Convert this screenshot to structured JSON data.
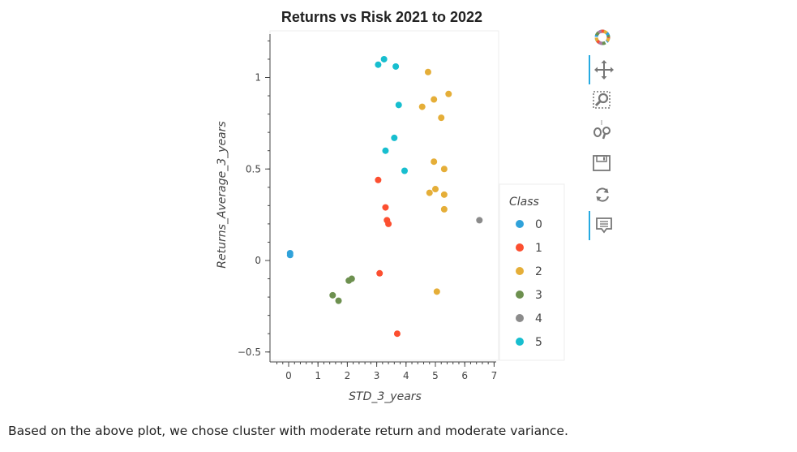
{
  "chart_data": {
    "type": "scatter",
    "title": "Returns vs Risk 2021 to 2022",
    "xlabel": "STD_3_years",
    "ylabel": "Returns_Average_3_years",
    "xlim": [
      -0.5,
      7.5
    ],
    "ylim": [
      -0.55,
      1.25
    ],
    "x_ticks": [
      0,
      1,
      2,
      3,
      4,
      5,
      6,
      7
    ],
    "y_ticks": [
      -0.5,
      0,
      0.5,
      1
    ],
    "y_tick_labels": [
      "−0.5",
      "0",
      "0.5",
      "1"
    ],
    "grid": false,
    "legend_title": "Class",
    "legend_position": "right",
    "series": [
      {
        "name": "0",
        "color": "#30a2da",
        "points": [
          [
            0.05,
            0.04
          ],
          [
            0.05,
            0.03
          ]
        ]
      },
      {
        "name": "1",
        "color": "#fc4f30",
        "points": [
          [
            3.05,
            0.44
          ],
          [
            3.3,
            0.29
          ],
          [
            3.35,
            0.22
          ],
          [
            3.4,
            0.2
          ],
          [
            3.1,
            -0.07
          ],
          [
            3.7,
            -0.4
          ]
        ]
      },
      {
        "name": "2",
        "color": "#e5ae38",
        "points": [
          [
            4.75,
            1.03
          ],
          [
            5.45,
            0.91
          ],
          [
            4.95,
            0.88
          ],
          [
            4.55,
            0.84
          ],
          [
            5.2,
            0.78
          ],
          [
            4.95,
            0.54
          ],
          [
            5.3,
            0.5
          ],
          [
            5.0,
            0.39
          ],
          [
            4.8,
            0.37
          ],
          [
            5.3,
            0.36
          ],
          [
            5.3,
            0.28
          ],
          [
            5.05,
            -0.17
          ]
        ]
      },
      {
        "name": "3",
        "color": "#6d904f",
        "points": [
          [
            1.5,
            -0.19
          ],
          [
            1.7,
            -0.22
          ],
          [
            2.05,
            -0.11
          ],
          [
            2.15,
            -0.1
          ]
        ]
      },
      {
        "name": "4",
        "color": "#8b8b8b",
        "points": [
          [
            6.5,
            0.22
          ]
        ]
      },
      {
        "name": "5",
        "color": "#17becf",
        "points": [
          [
            3.05,
            1.07
          ],
          [
            3.25,
            1.1
          ],
          [
            3.65,
            1.06
          ],
          [
            3.75,
            0.85
          ],
          [
            3.6,
            0.67
          ],
          [
            3.3,
            0.6
          ],
          [
            3.95,
            0.49
          ]
        ]
      }
    ]
  },
  "caption": "Based on the above plot, we chose cluster with moderate return and moderate variance.",
  "toolbar": {
    "tools": [
      {
        "name": "bokeh-logo-icon",
        "active": false
      },
      {
        "name": "pan-tool-icon",
        "active": true
      },
      {
        "name": "box-zoom-tool-icon",
        "active": false
      },
      {
        "name": "wheel-zoom-tool-icon",
        "active": false
      },
      {
        "name": "save-tool-icon",
        "active": false
      },
      {
        "name": "reset-tool-icon",
        "active": false
      },
      {
        "name": "hover-tool-icon",
        "active": true
      }
    ]
  }
}
